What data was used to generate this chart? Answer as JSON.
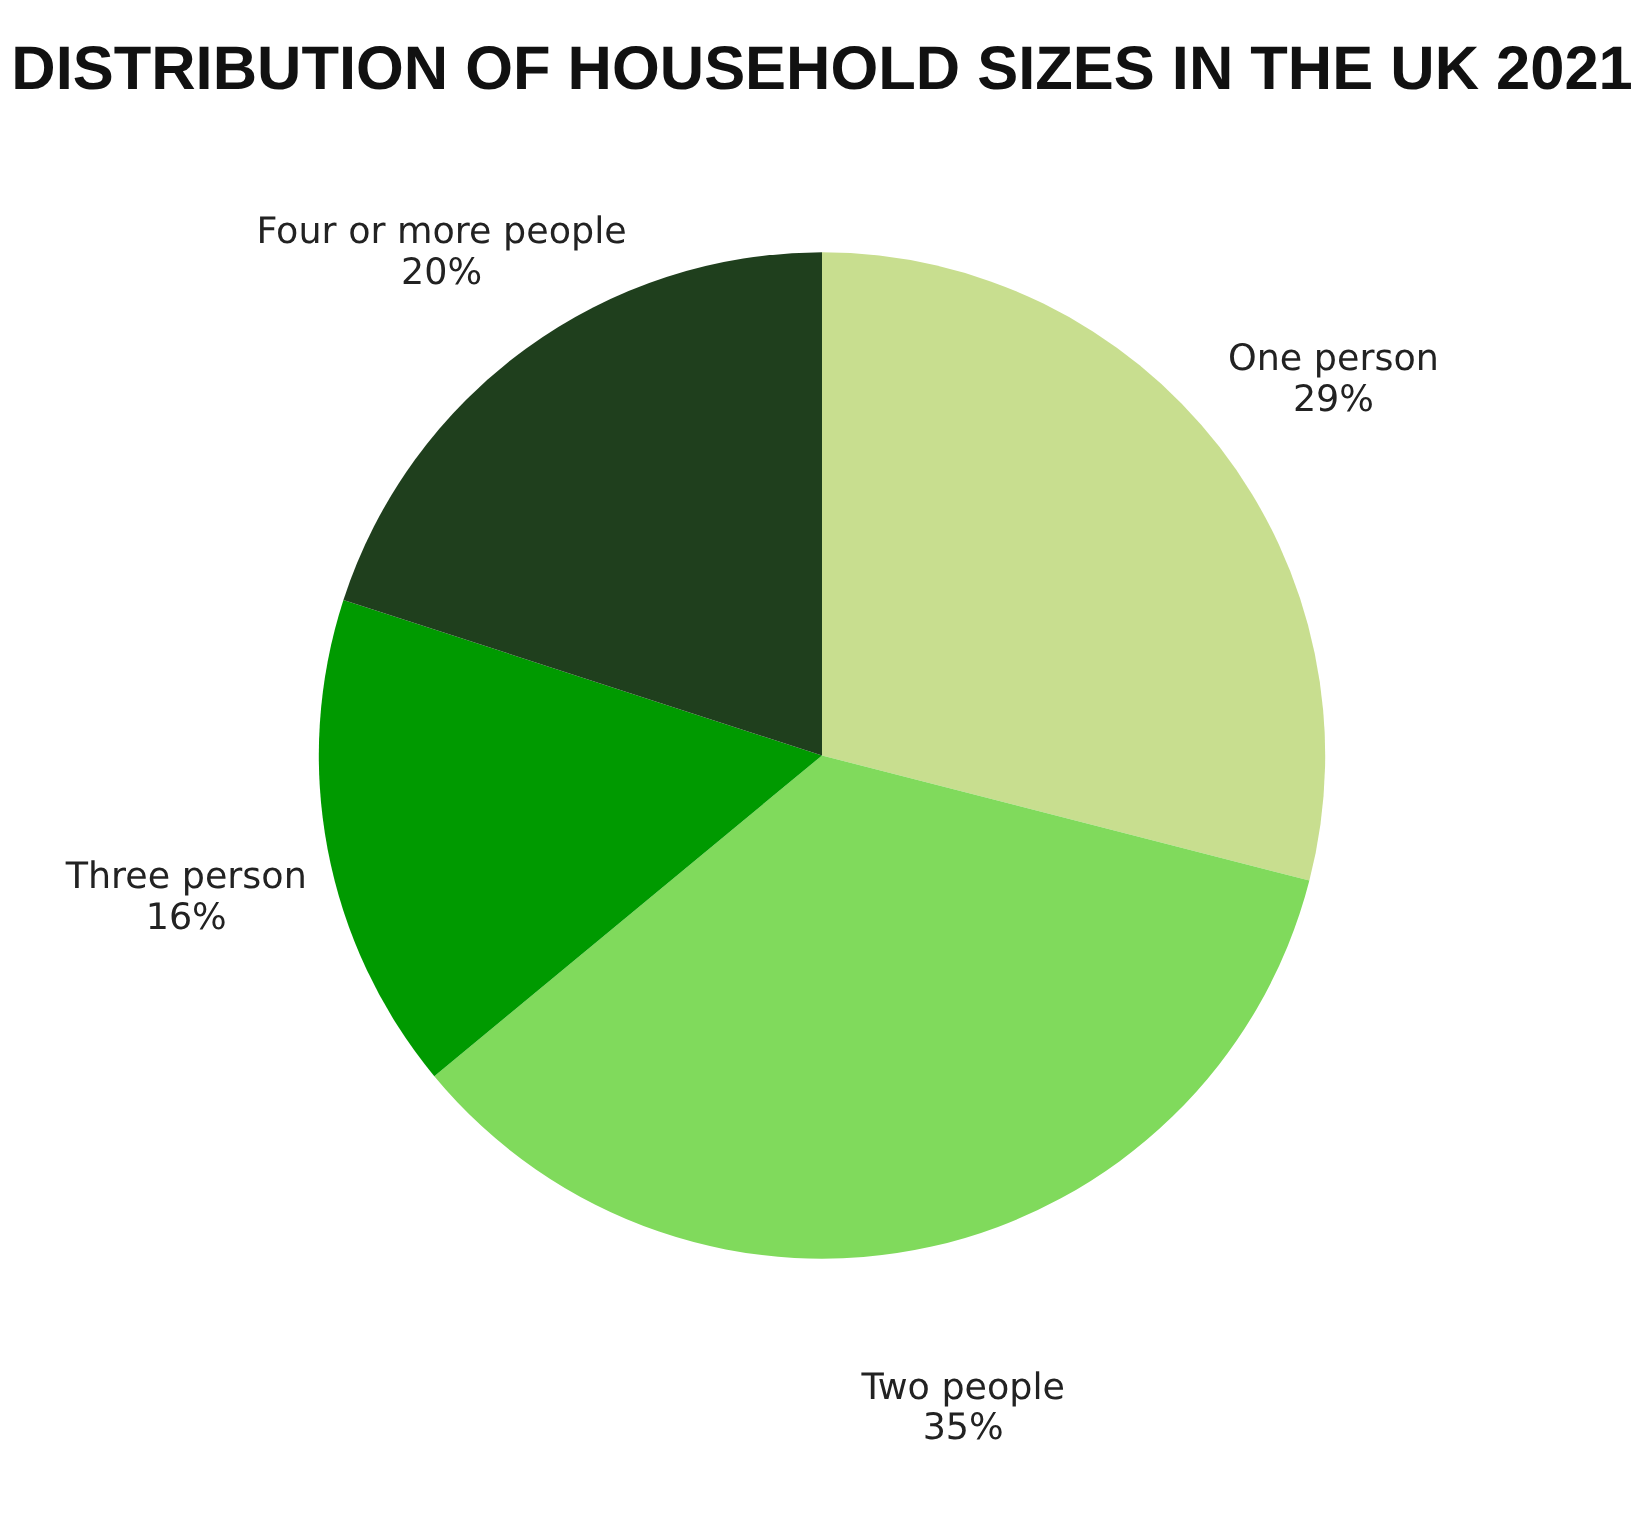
{
  "chart_data": {
    "type": "pie",
    "title": "DISTRIBUTION OF HOUSEHOLD SIZES IN THE UK 2021",
    "categories": [
      "One person",
      "Two people",
      "Three person",
      "Four or more people"
    ],
    "values": [
      29,
      35,
      16,
      20
    ],
    "value_labels": [
      "29%",
      "35%",
      "16%",
      "20%"
    ],
    "colors": [
      "#c8de8f",
      "#80da5c",
      "#009a00",
      "#1f3f1d"
    ],
    "legend": false
  }
}
